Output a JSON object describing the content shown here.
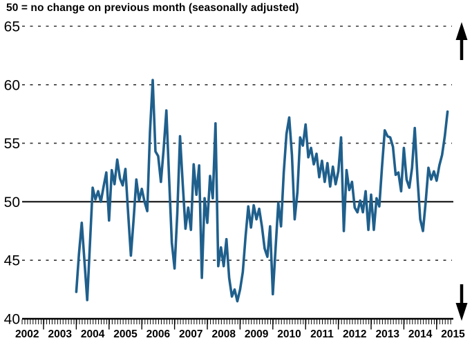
{
  "header": {
    "title": "50 = no change on previous month (seasonally adjusted)"
  },
  "chart_data": {
    "type": "line",
    "title": "50 = no change on previous month (seasonally adjusted)",
    "frequency": "monthly",
    "x_start": "2004-01",
    "x_tick_labels": [
      "2002",
      "2003",
      "2004",
      "2005",
      "2006",
      "2007",
      "2008",
      "2009",
      "2010",
      "2011",
      "2012",
      "2013",
      "2014",
      "2015"
    ],
    "y_tick_labels": [
      "40",
      "45",
      "50",
      "55",
      "60",
      "65"
    ],
    "ylim": [
      40,
      65
    ],
    "reference_line": 50,
    "grid": {
      "horizontal_dashed_at": [
        45,
        55,
        60,
        65
      ],
      "horizontal_solid_at": [
        50
      ]
    },
    "legend": "none",
    "series": [
      {
        "name": "index (50 = no change on previous month)",
        "color": "#1f5f8c",
        "values": [
          42.3,
          45.6,
          48.2,
          44.9,
          41.6,
          46.4,
          51.2,
          50.2,
          50.9,
          50.0,
          51.3,
          52.5,
          48.4,
          52.7,
          51.5,
          53.6,
          52.0,
          51.4,
          52.8,
          49.0,
          45.4,
          48.5,
          51.9,
          50.1,
          51.1,
          50.0,
          49.2,
          56.0,
          60.4,
          54.3,
          53.9,
          51.7,
          54.5,
          57.8,
          52.0,
          46.5,
          44.3,
          49.0,
          55.6,
          51.5,
          47.7,
          49.5,
          47.6,
          53.2,
          50.6,
          53.1,
          43.5,
          50.3,
          48.2,
          52.2,
          50.3,
          56.7,
          44.5,
          46.1,
          44.5,
          46.8,
          43.5,
          41.9,
          42.5,
          41.5,
          42.5,
          44.0,
          47.0,
          49.6,
          47.8,
          49.7,
          48.5,
          49.4,
          47.9,
          46.0,
          45.3,
          47.9,
          42.1,
          46.0,
          49.9,
          47.9,
          52.5,
          55.8,
          57.2,
          54.0,
          48.5,
          50.8,
          55.5,
          54.8,
          56.6,
          53.8,
          54.6,
          53.2,
          54.1,
          52.1,
          53.5,
          51.7,
          53.3,
          51.3,
          53.0,
          51.5,
          52.6,
          55.5,
          47.5,
          52.7,
          51.0,
          51.7,
          49.5,
          49.1,
          50.1,
          49.1,
          50.9,
          47.6,
          50.6,
          47.6,
          50.3,
          49.6,
          53.0,
          56.1,
          55.6,
          55.5,
          54.7,
          52.3,
          52.5,
          50.9,
          54.6,
          51.9,
          51.2,
          52.9,
          56.3,
          52.0,
          48.5,
          47.5,
          50.0,
          52.9,
          51.9,
          52.6,
          51.8,
          53.1,
          54.0,
          55.6,
          57.7
        ]
      }
    ],
    "annotations": [
      {
        "name": "up-arrow",
        "position": "top-right",
        "color": "#000000"
      },
      {
        "name": "down-arrow",
        "position": "bottom-right",
        "color": "#000000"
      }
    ]
  }
}
